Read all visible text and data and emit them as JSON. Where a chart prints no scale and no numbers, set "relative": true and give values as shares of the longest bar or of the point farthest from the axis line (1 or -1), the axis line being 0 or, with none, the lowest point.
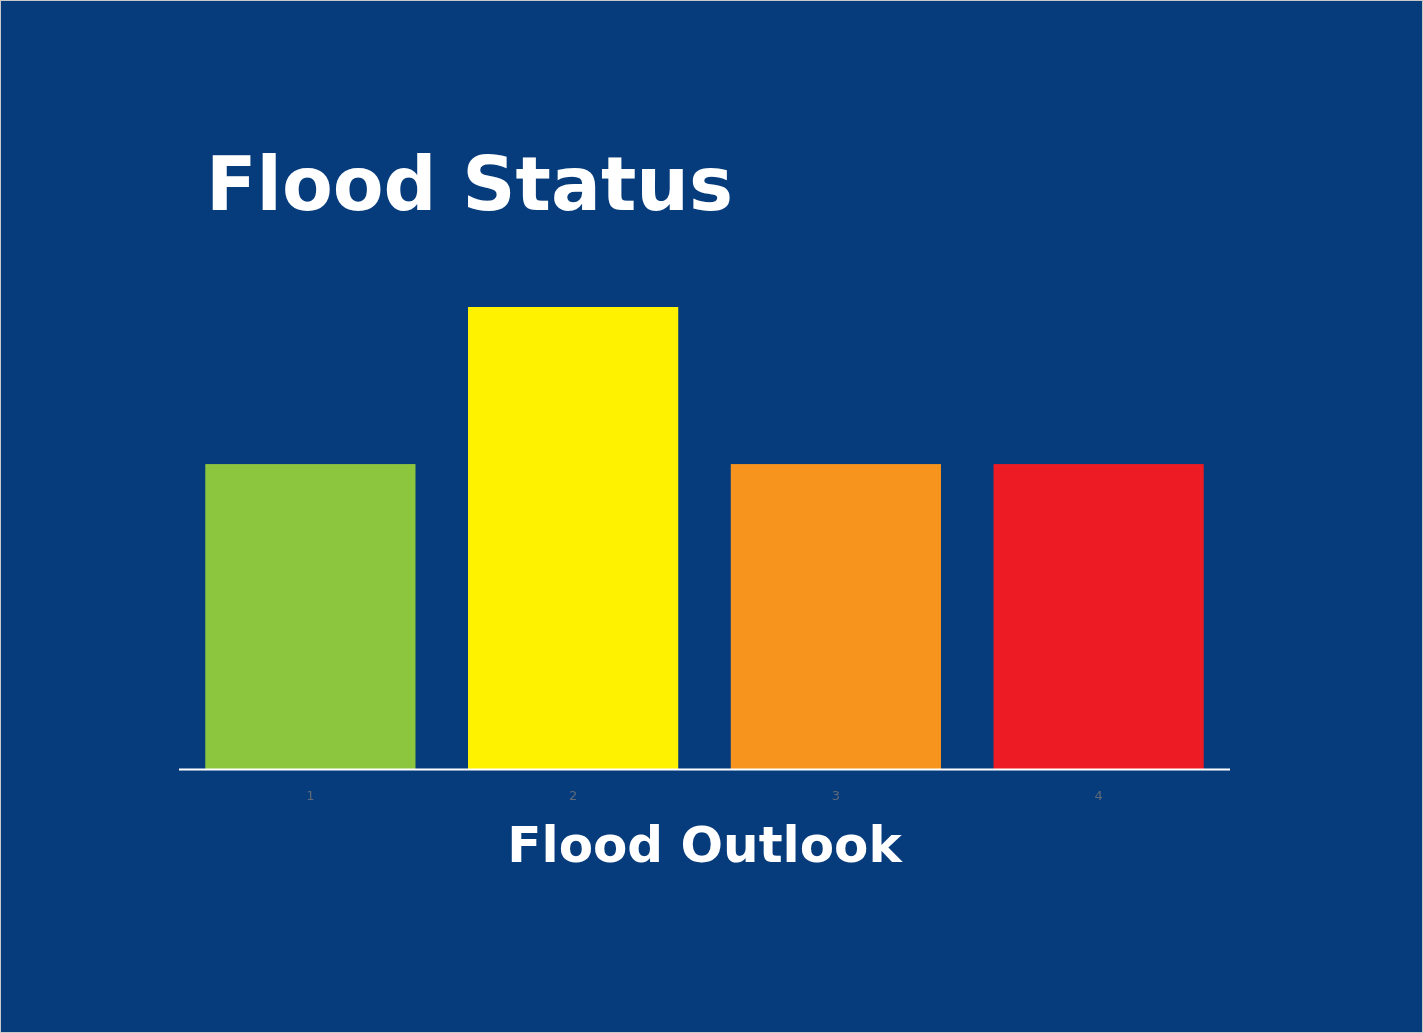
{
  "chart_data": {
    "type": "bar",
    "title": "Flood Status",
    "xlabel": "Flood Outlook",
    "categories": [
      "1",
      "2",
      "3",
      "4"
    ],
    "values": [
      0.66,
      1,
      0.66,
      0.66
    ],
    "colors": [
      "#8cc63f",
      "#fff200",
      "#f7941d",
      "#ed1c24"
    ],
    "relative": true
  }
}
